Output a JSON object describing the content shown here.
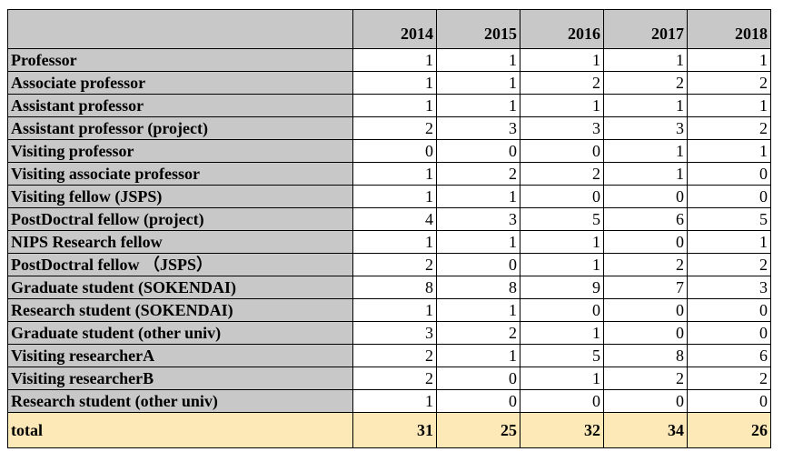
{
  "table": {
    "years": [
      "2014",
      "2015",
      "2016",
      "2017",
      "2018"
    ],
    "rows": [
      {
        "label": "Professor",
        "values": [
          "1",
          "1",
          "1",
          "1",
          "1"
        ]
      },
      {
        "label": "Associate professor",
        "values": [
          "1",
          "1",
          "2",
          "2",
          "2"
        ]
      },
      {
        "label": "Assistant professor",
        "values": [
          "1",
          "1",
          "1",
          "1",
          "1"
        ]
      },
      {
        "label": "Assistant professor (project)",
        "values": [
          "2",
          "3",
          "3",
          "3",
          "2"
        ]
      },
      {
        "label": "Visiting professor",
        "values": [
          "0",
          "0",
          "0",
          "1",
          "1"
        ]
      },
      {
        "label": "Visiting associate professor",
        "values": [
          "1",
          "2",
          "2",
          "1",
          "0"
        ]
      },
      {
        "label": "Visiting fellow (JSPS)",
        "values": [
          "1",
          "1",
          "0",
          "0",
          "0"
        ]
      },
      {
        "label": "PostDoctral fellow (project)",
        "values": [
          "4",
          "3",
          "5",
          "6",
          "5"
        ]
      },
      {
        "label": "NIPS Research fellow",
        "values": [
          "1",
          "1",
          "1",
          "0",
          "1"
        ]
      },
      {
        "label": "PostDoctral fellow （JSPS）",
        "values": [
          "2",
          "0",
          "1",
          "2",
          "2"
        ]
      },
      {
        "label": "Graduate student (SOKENDAI)",
        "values": [
          "8",
          "8",
          "9",
          "7",
          "3"
        ]
      },
      {
        "label": "Research student (SOKENDAI)",
        "values": [
          "1",
          "1",
          "0",
          "0",
          "0"
        ]
      },
      {
        "label": "Graduate student (other univ)",
        "values": [
          "3",
          "2",
          "1",
          "0",
          "0"
        ]
      },
      {
        "label": "Visiting researcherA",
        "values": [
          "2",
          "1",
          "5",
          "8",
          "6"
        ]
      },
      {
        "label": "Visiting researcherB",
        "values": [
          "2",
          "0",
          "1",
          "2",
          "2"
        ]
      },
      {
        "label": "Research student (other univ)",
        "values": [
          "1",
          "0",
          "0",
          "0",
          "0"
        ]
      }
    ],
    "total": {
      "label": "total",
      "values": [
        "31",
        "25",
        "32",
        "34",
        "26"
      ]
    }
  },
  "colors": {
    "header_bg": "#c8c8c8",
    "total_bg": "#fde9b8"
  }
}
